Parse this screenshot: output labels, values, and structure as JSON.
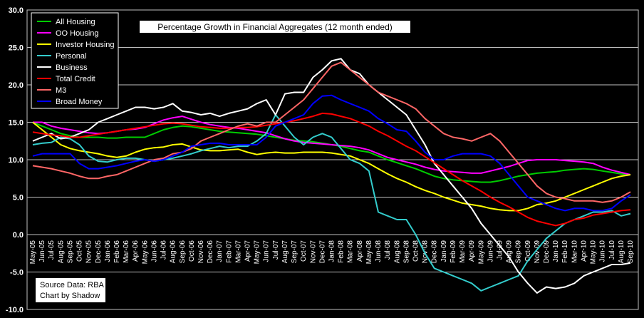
{
  "chart_data": {
    "type": "line",
    "title": "Percentage Growth in Financial Aggregates (12 month ended)",
    "source_lines": [
      "Source Data: RBA",
      "Chart by Shadow"
    ],
    "ylim": [
      -10,
      30
    ],
    "yticks": [
      "30.0",
      "25.0",
      "20.0",
      "15.0",
      "10.0",
      "5.0",
      "0.0",
      "-5.0",
      "-10.0"
    ],
    "ytick_values": [
      30,
      25,
      20,
      15,
      10,
      5,
      0,
      -5,
      -10
    ],
    "grid": true,
    "legend_position": "top-left",
    "x": [
      "May-05",
      "Jun-05",
      "Jul-05",
      "Aug-05",
      "Sep-05",
      "Oct-05",
      "Nov-05",
      "Dec-05",
      "Jan-06",
      "Feb-06",
      "Mar-06",
      "Apr-06",
      "May-06",
      "Jun-06",
      "Jul-06",
      "Aug-06",
      "Sep-06",
      "Oct-06",
      "Nov-06",
      "Dec-06",
      "Jan-07",
      "Feb-07",
      "Mar-07",
      "Apr-07",
      "May-07",
      "Jun-07",
      "Jul-07",
      "Aug-07",
      "Sep-07",
      "Oct-07",
      "Nov-07",
      "Dec-07",
      "Jan-08",
      "Feb-08",
      "Mar-08",
      "Apr-08",
      "May-08",
      "Jun-08",
      "Jul-08",
      "Aug-08",
      "Sep-08",
      "Oct-08",
      "Nov-08",
      "Dec-08",
      "Jan-09",
      "Feb-09",
      "Mar-09",
      "Apr-09",
      "May-09",
      "Jun-09",
      "Jul-09",
      "Aug-09",
      "Sep-09",
      "Oct-09",
      "Nov-09",
      "Dec-09",
      "Jan-10",
      "Feb-10",
      "Mar-10",
      "Apr-10",
      "May-10",
      "Jun-10",
      "Jul-10",
      "Aug-10",
      "Sep-10"
    ],
    "series": [
      {
        "name": "All Housing",
        "color": "#00cc00",
        "values": [
          15.0,
          14.5,
          14.0,
          13.5,
          13.2,
          13.0,
          13.0,
          13.0,
          12.9,
          12.9,
          13.0,
          13.0,
          13.0,
          13.5,
          14.0,
          14.3,
          14.5,
          14.4,
          14.2,
          14.0,
          13.8,
          13.7,
          13.6,
          13.5,
          13.4,
          13.2,
          13.0,
          12.8,
          12.6,
          12.5,
          12.4,
          12.2,
          12.0,
          11.8,
          11.5,
          11.2,
          11.0,
          10.5,
          10.0,
          9.6,
          9.2,
          8.8,
          8.3,
          7.8,
          7.5,
          7.3,
          7.2,
          7.1,
          7.0,
          7.0,
          7.2,
          7.5,
          7.8,
          8.0,
          8.2,
          8.3,
          8.4,
          8.6,
          8.7,
          8.8,
          8.7,
          8.5,
          8.3,
          8.1,
          8.0
        ]
      },
      {
        "name": "OO Housing",
        "color": "#ff00ff",
        "values": [
          15.0,
          15.0,
          14.5,
          14.2,
          14.0,
          13.8,
          13.6,
          13.5,
          13.6,
          13.8,
          14.0,
          14.1,
          14.3,
          14.8,
          15.3,
          15.6,
          15.8,
          15.4,
          15.0,
          14.7,
          14.5,
          14.3,
          14.2,
          14.0,
          13.8,
          13.6,
          13.2,
          12.8,
          12.5,
          12.3,
          12.2,
          12.1,
          12.0,
          11.9,
          11.8,
          11.6,
          11.3,
          10.8,
          10.3,
          10.0,
          9.7,
          9.4,
          9.0,
          8.7,
          8.5,
          8.4,
          8.3,
          8.2,
          8.2,
          8.5,
          8.8,
          9.1,
          9.5,
          9.9,
          10.0,
          10.0,
          10.0,
          9.9,
          9.8,
          9.7,
          9.5,
          9.0,
          8.6,
          8.3,
          8.0
        ]
      },
      {
        "name": "Investor Housing",
        "color": "#ffff00",
        "values": [
          15.0,
          14.0,
          13.0,
          12.0,
          11.5,
          11.2,
          11.0,
          10.8,
          10.5,
          10.3,
          10.5,
          11.0,
          11.4,
          11.6,
          11.7,
          12.0,
          12.1,
          11.7,
          11.3,
          11.2,
          11.2,
          11.3,
          11.4,
          11.0,
          10.7,
          10.9,
          11.0,
          10.9,
          10.9,
          11.0,
          11.0,
          11.0,
          10.9,
          10.7,
          10.5,
          10.0,
          9.5,
          8.8,
          8.1,
          7.5,
          7.0,
          6.4,
          5.9,
          5.5,
          5.0,
          4.6,
          4.2,
          4.0,
          3.8,
          3.5,
          3.3,
          3.2,
          3.2,
          3.5,
          4.0,
          4.2,
          4.5,
          5.0,
          5.5,
          6.0,
          6.5,
          7.0,
          7.5,
          7.8,
          8.0
        ]
      },
      {
        "name": "Personal",
        "color": "#33cccc",
        "values": [
          12.0,
          12.2,
          12.3,
          13.0,
          12.8,
          12.0,
          10.5,
          9.8,
          9.7,
          10.0,
          10.2,
          10.2,
          10.0,
          9.8,
          10.0,
          10.2,
          10.5,
          10.8,
          11.2,
          11.5,
          11.8,
          11.6,
          11.8,
          11.8,
          12.5,
          13.5,
          16.0,
          14.5,
          13.0,
          12.0,
          13.0,
          13.5,
          13.0,
          11.5,
          10.0,
          9.5,
          8.5,
          3.0,
          2.5,
          2.0,
          2.0,
          0.0,
          -2.5,
          -4.5,
          -5.0,
          -5.5,
          -6.0,
          -6.5,
          -7.5,
          -7.0,
          -6.5,
          -6.0,
          -5.5,
          -3.5,
          -2.0,
          -0.5,
          0.5,
          1.5,
          2.0,
          2.5,
          3.0,
          3.0,
          3.2,
          2.5,
          2.8
        ]
      },
      {
        "name": "Business",
        "color": "#ffffff",
        "values": [
          12.5,
          13.0,
          13.5,
          12.8,
          13.0,
          13.5,
          14.0,
          15.0,
          15.5,
          16.0,
          16.5,
          17.0,
          17.0,
          16.8,
          17.0,
          17.5,
          16.5,
          16.3,
          16.0,
          16.2,
          15.8,
          16.2,
          16.5,
          16.8,
          17.5,
          18.0,
          16.0,
          18.8,
          19.0,
          19.0,
          21.0,
          22.0,
          23.2,
          23.5,
          22.0,
          21.5,
          20.0,
          19.0,
          18.0,
          17.0,
          16.0,
          14.0,
          12.0,
          9.5,
          8.0,
          6.5,
          5.0,
          3.5,
          1.5,
          0.0,
          -1.5,
          -3.0,
          -5.0,
          -6.5,
          -7.8,
          -7.0,
          -7.2,
          -7.0,
          -6.5,
          -5.5,
          -5.0,
          -4.5,
          -4.0,
          -4.0,
          -3.8
        ]
      },
      {
        "name": "Total Credit",
        "color": "#ff0000",
        "values": [
          13.7,
          13.5,
          13.3,
          13.2,
          13.0,
          13.0,
          13.2,
          13.4,
          13.6,
          13.8,
          14.0,
          14.2,
          14.4,
          14.6,
          14.8,
          14.9,
          14.8,
          14.6,
          14.4,
          14.3,
          14.2,
          14.2,
          14.3,
          14.3,
          14.4,
          14.6,
          14.8,
          15.0,
          15.2,
          15.5,
          15.8,
          16.2,
          16.1,
          15.8,
          15.5,
          15.0,
          14.5,
          13.8,
          13.2,
          12.5,
          11.8,
          11.2,
          10.4,
          9.6,
          8.8,
          8.0,
          7.2,
          6.5,
          5.8,
          5.0,
          4.3,
          3.7,
          3.0,
          2.3,
          1.8,
          1.5,
          1.2,
          1.5,
          2.0,
          2.2,
          2.6,
          2.8,
          3.0,
          3.2,
          3.3
        ]
      },
      {
        "name": "M3",
        "color": "#ff6666",
        "values": [
          9.2,
          9.0,
          8.8,
          8.5,
          8.2,
          7.8,
          7.5,
          7.5,
          7.8,
          8.0,
          8.5,
          9.0,
          9.5,
          10.0,
          10.2,
          10.8,
          11.0,
          11.5,
          12.5,
          13.0,
          13.5,
          14.0,
          14.5,
          14.8,
          14.5,
          15.0,
          15.0,
          16.0,
          17.0,
          18.0,
          19.5,
          21.0,
          22.5,
          23.0,
          22.0,
          21.0,
          20.0,
          19.0,
          18.5,
          18.0,
          17.5,
          16.8,
          15.5,
          14.5,
          13.5,
          13.0,
          12.8,
          12.5,
          13.0,
          13.5,
          12.5,
          11.0,
          9.5,
          8.0,
          6.5,
          5.5,
          5.0,
          4.8,
          4.5,
          4.5,
          4.5,
          4.3,
          4.5,
          5.0,
          5.7
        ]
      },
      {
        "name": "Broad Money",
        "color": "#0000ff",
        "values": [
          10.5,
          10.8,
          10.8,
          10.8,
          10.8,
          9.5,
          8.8,
          8.8,
          9.0,
          9.2,
          9.5,
          9.8,
          10.0,
          9.8,
          10.0,
          10.5,
          11.0,
          11.8,
          12.0,
          12.2,
          12.2,
          12.0,
          12.0,
          12.0,
          12.0,
          13.0,
          14.5,
          15.0,
          15.5,
          16.0,
          17.5,
          18.5,
          18.6,
          18.0,
          17.5,
          17.0,
          16.5,
          15.5,
          14.8,
          14.0,
          13.8,
          12.5,
          11.0,
          10.0,
          10.0,
          10.5,
          10.8,
          10.8,
          10.8,
          10.5,
          9.5,
          8.0,
          6.5,
          5.0,
          4.5,
          4.0,
          3.5,
          3.2,
          3.5,
          3.5,
          3.2,
          3.2,
          3.5,
          4.5,
          5.3
        ]
      }
    ]
  }
}
